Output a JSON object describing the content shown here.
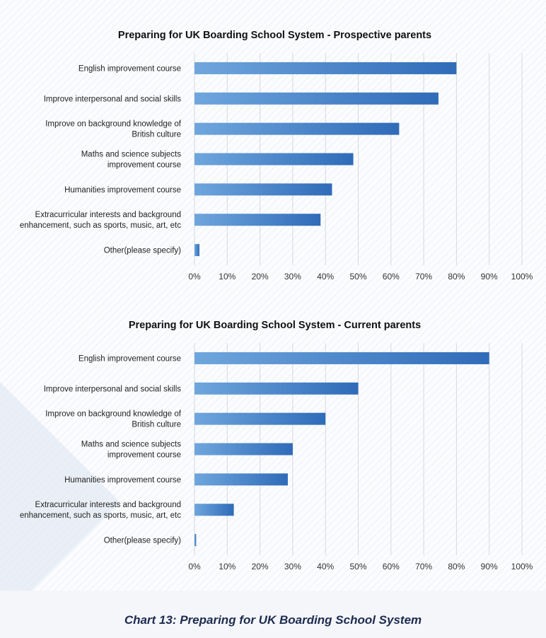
{
  "chart_data": [
    {
      "type": "bar",
      "orientation": "horizontal",
      "title": "Preparing for UK Boarding School System - Prospective parents",
      "categories": [
        [
          "English improvement course"
        ],
        [
          "Improve interpersonal and social skills"
        ],
        [
          "Improve on background knowledge of",
          "British culture"
        ],
        [
          "Maths and science subjects",
          "improvement course"
        ],
        [
          "Humanities improvement course"
        ],
        [
          "Extracurricular interests and background",
          "enhancement, such as sports, music, art, etc"
        ],
        [
          "Other(please specify)"
        ]
      ],
      "values": [
        80,
        74.5,
        62.5,
        48.5,
        42,
        38.5,
        1.5
      ],
      "xlim": [
        0,
        100
      ],
      "xticks": [
        "0%",
        "10%",
        "20%",
        "30%",
        "40%",
        "50%",
        "60%",
        "70%",
        "80%",
        "90%",
        "100%"
      ],
      "grid": true,
      "bar_color_start": "#6fa6dd",
      "bar_color_end": "#2f6bb8"
    },
    {
      "type": "bar",
      "orientation": "horizontal",
      "title": "Preparing for UK Boarding School System - Current parents",
      "categories": [
        [
          "English improvement course"
        ],
        [
          "Improve interpersonal and social skills"
        ],
        [
          "Improve on background knowledge of",
          "British culture"
        ],
        [
          "Maths and science subjects",
          "improvement course"
        ],
        [
          "Humanities improvement course"
        ],
        [
          "Extracurricular interests and background",
          "enhancement, such as sports, music, art, etc"
        ],
        [
          "Other(please specify)"
        ]
      ],
      "values": [
        90,
        50,
        40,
        30,
        28.5,
        12,
        0.5
      ],
      "xlim": [
        0,
        100
      ],
      "xticks": [
        "0%",
        "10%",
        "20%",
        "30%",
        "40%",
        "50%",
        "60%",
        "70%",
        "80%",
        "90%",
        "100%"
      ],
      "grid": true,
      "bar_color_start": "#6fa6dd",
      "bar_color_end": "#2f6bb8"
    }
  ],
  "caption": "Chart 13: Preparing for UK Boarding School System"
}
